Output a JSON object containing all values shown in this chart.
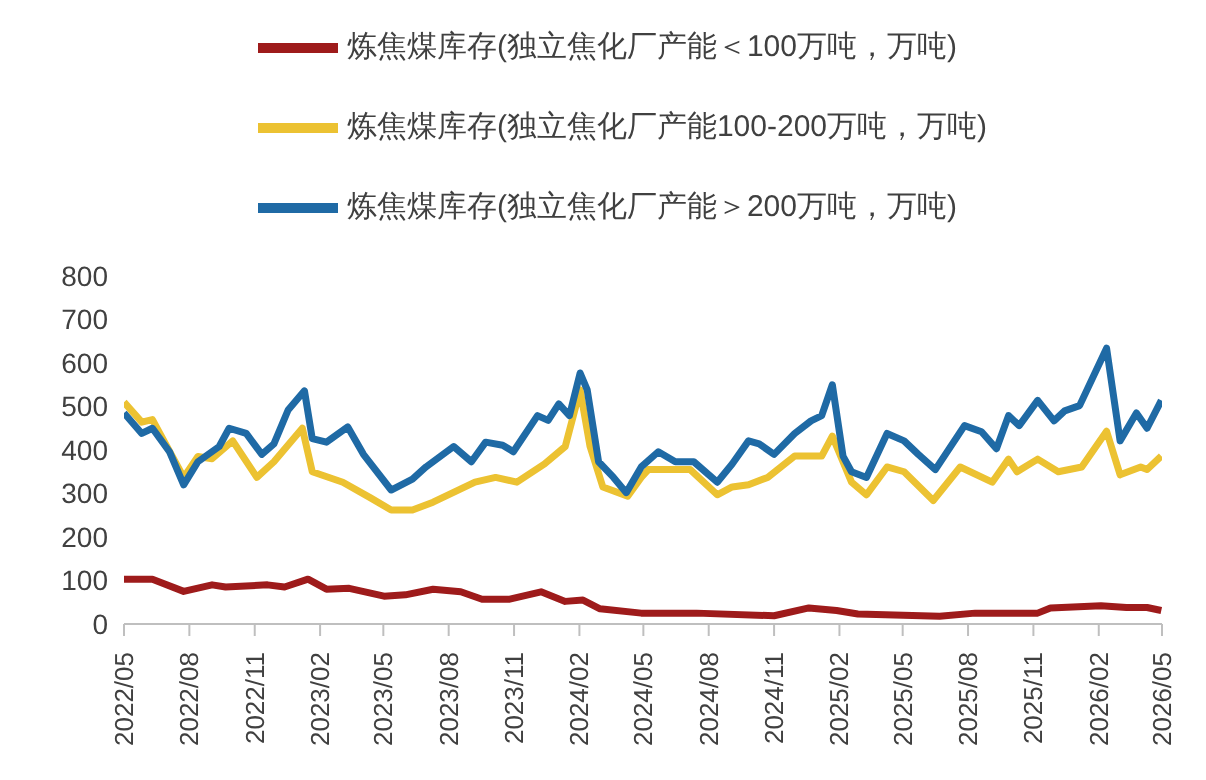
{
  "chart_data": {
    "type": "line",
    "xlim": [
      "2022-05",
      "2026-05"
    ],
    "xticks": [
      {
        "value": "2022-05",
        "label": "2022/05"
      },
      {
        "value": "2022-08",
        "label": "2022/08"
      },
      {
        "value": "2022-11",
        "label": "2022/11"
      },
      {
        "value": "2023-02",
        "label": "2023/02"
      },
      {
        "value": "2023-05",
        "label": "2023/05"
      },
      {
        "value": "2023-08",
        "label": "2023/08"
      },
      {
        "value": "2023-11",
        "label": "2023/11"
      },
      {
        "value": "2024-02",
        "label": "2024/02"
      },
      {
        "value": "2024-05",
        "label": "2024/05"
      },
      {
        "value": "2024-08",
        "label": "2024/08"
      },
      {
        "value": "2024-11",
        "label": "2024/11"
      },
      {
        "value": "2025-02",
        "label": "2025/02"
      },
      {
        "value": "2025-05",
        "label": "2025/05"
      },
      {
        "value": "2025-08",
        "label": "2025/08"
      },
      {
        "value": "2025-11",
        "label": "2025/11"
      },
      {
        "value": "2026-02",
        "label": "2026/02"
      },
      {
        "value": "2026-05",
        "label": "2026/05"
      }
    ],
    "ylim": [
      0,
      800
    ],
    "yticks": [
      0,
      100,
      200,
      300,
      400,
      500,
      600,
      700,
      800
    ],
    "grid": false,
    "legend": "top",
    "marker": "none",
    "line_style": "solid",
    "series": [
      {
        "name": "炼焦煤库存(独立焦化厂产能＜100万吨，万吨)",
        "color": "#9e1b1b",
        "x": [
          "2022-05-01",
          "2022-06-10",
          "2022-07-24",
          "2022-09-02",
          "2022-09-21",
          "2022-11-19",
          "2022-12-13",
          "2023-01-15",
          "2023-02-10",
          "2023-03-14",
          "2023-05-02",
          "2023-06-01",
          "2023-07-10",
          "2023-08-18",
          "2023-09-17",
          "2023-10-26",
          "2023-12-09",
          "2024-01-12",
          "2024-02-06",
          "2024-03-01",
          "2024-04-28",
          "2024-07-15",
          "2024-11-01",
          "2024-12-20",
          "2025-01-28",
          "2025-02-27",
          "2025-06-22",
          "2025-08-11",
          "2025-11-07",
          "2025-11-25",
          "2026-02-04",
          "2026-03-12",
          "2026-04-10",
          "2026-04-30"
        ],
        "values": [
          103,
          103,
          75,
          90,
          85,
          90,
          85,
          103,
          80,
          82,
          64,
          67,
          80,
          74,
          57,
          57,
          74,
          52,
          55,
          35,
          25,
          25,
          19,
          37,
          31,
          23,
          18,
          25,
          25,
          37,
          42,
          38,
          38,
          31
        ]
      },
      {
        "name": "炼焦煤库存(独立焦化厂产能100-200万吨，万吨)",
        "color": "#ecc232",
        "x": [
          "2022-05-01",
          "2022-05-26",
          "2022-06-10",
          "2022-07-24",
          "2022-08-13",
          "2022-09-02",
          "2022-10-01",
          "2022-11-04",
          "2022-11-28",
          "2023-01-07",
          "2023-01-21",
          "2023-03-05",
          "2023-04-13",
          "2023-05-12",
          "2023-06-11",
          "2023-07-10",
          "2023-09-07",
          "2023-10-06",
          "2023-11-05",
          "2023-12-14",
          "2024-01-12",
          "2024-02-02",
          "2024-02-16",
          "2024-03-05",
          "2024-04-09",
          "2024-04-28",
          "2024-05-08",
          "2024-07-06",
          "2024-08-13",
          "2024-09-03",
          "2024-09-26",
          "2024-10-23",
          "2024-11-30",
          "2025-01-07",
          "2025-01-22",
          "2025-02-18",
          "2025-03-11",
          "2025-04-09",
          "2025-05-03",
          "2025-06-13",
          "2025-07-21",
          "2025-09-04",
          "2025-09-27",
          "2025-10-09",
          "2025-11-07",
          "2025-12-06",
          "2026-01-08",
          "2026-02-12",
          "2026-03-03",
          "2026-04-01",
          "2026-04-10",
          "2026-04-30"
        ],
        "values": [
          510,
          464,
          470,
          337,
          385,
          380,
          421,
          337,
          373,
          450,
          350,
          326,
          290,
          262,
          262,
          280,
          326,
          337,
          326,
          368,
          408,
          538,
          408,
          315,
          294,
          337,
          355,
          355,
          297,
          315,
          320,
          337,
          386,
          386,
          432,
          326,
          297,
          361,
          350,
          284,
          361,
          326,
          379,
          350,
          379,
          350,
          361,
          443,
          343,
          361,
          355,
          386
        ]
      },
      {
        "name": "炼焦煤库存(独立焦化厂产能＞200万吨，万吨)",
        "color": "#1f6aa5",
        "x": [
          "2022-05-01",
          "2022-05-26",
          "2022-06-10",
          "2022-07-04",
          "2022-07-24",
          "2022-08-13",
          "2022-09-12",
          "2022-09-26",
          "2022-10-20",
          "2022-11-11",
          "2022-11-28",
          "2022-12-18",
          "2023-01-10",
          "2023-01-21",
          "2023-02-10",
          "2023-03-12",
          "2023-04-03",
          "2023-05-12",
          "2023-06-11",
          "2023-06-30",
          "2023-08-08",
          "2023-09-02",
          "2023-09-22",
          "2023-10-16",
          "2023-10-31",
          "2023-12-04",
          "2023-12-19",
          "2024-01-03",
          "2024-01-18",
          "2024-02-02",
          "2024-02-12",
          "2024-02-28",
          "2024-03-20",
          "2024-04-07",
          "2024-04-28",
          "2024-05-22",
          "2024-06-15",
          "2024-07-11",
          "2024-08-13",
          "2024-09-03",
          "2024-09-26",
          "2024-10-11",
          "2024-11-01",
          "2024-11-30",
          "2024-12-23",
          "2025-01-07",
          "2025-01-22",
          "2025-02-06",
          "2025-02-18",
          "2025-03-11",
          "2025-04-09",
          "2025-05-03",
          "2025-05-23",
          "2025-06-16",
          "2025-07-27",
          "2025-08-20",
          "2025-09-10",
          "2025-09-27",
          "2025-10-12",
          "2025-11-07",
          "2025-11-30",
          "2025-12-15",
          "2026-01-05",
          "2026-02-12",
          "2026-03-03",
          "2026-03-26",
          "2026-04-10",
          "2026-04-30"
        ],
        "values": [
          485,
          438,
          450,
          396,
          320,
          373,
          408,
          450,
          438,
          390,
          414,
          492,
          536,
          426,
          418,
          453,
          390,
          308,
          333,
          361,
          408,
          373,
          418,
          411,
          396,
          479,
          468,
          506,
          479,
          577,
          538,
          373,
          337,
          302,
          361,
          396,
          373,
          373,
          326,
          368,
          421,
          414,
          390,
          438,
          467,
          479,
          550,
          386,
          350,
          337,
          438,
          421,
          390,
          355,
          456,
          442,
          403,
          479,
          456,
          514,
          467,
          490,
          502,
          634,
          421,
          485,
          450,
          514
        ]
      }
    ]
  }
}
